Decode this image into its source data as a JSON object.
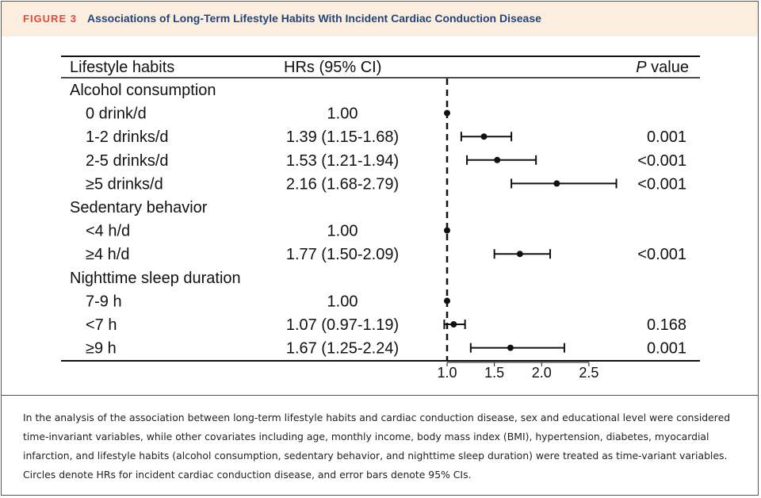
{
  "figure": {
    "label": "FIGURE 3",
    "title": "Associations of Long-Term Lifestyle Habits With Incident Cardiac Conduction Disease"
  },
  "chart_data": {
    "type": "forest",
    "columns": {
      "habits": "Lifestyle habits",
      "hr": "HRs (95% CI)",
      "p_prefix": "P",
      "p_suffix": " value"
    },
    "reference_line": 1.0,
    "x_ticks": [
      1.0,
      1.5,
      2.0,
      2.5
    ],
    "x_tick_labels": [
      "1.0",
      "1.5",
      "2.0",
      "2.5"
    ],
    "xlim": [
      0.85,
      2.95
    ],
    "rows": [
      {
        "kind": "group",
        "label": "Alcohol consumption"
      },
      {
        "kind": "item",
        "label": "0 drink/d",
        "hr_text": "1.00",
        "hr": 1.0,
        "lo": 1.0,
        "hi": 1.0,
        "p": ""
      },
      {
        "kind": "item",
        "label": "1-2 drinks/d",
        "hr_text": "1.39 (1.15-1.68)",
        "hr": 1.39,
        "lo": 1.15,
        "hi": 1.68,
        "p": "0.001"
      },
      {
        "kind": "item",
        "label": "2-5 drinks/d",
        "hr_text": "1.53 (1.21-1.94)",
        "hr": 1.53,
        "lo": 1.21,
        "hi": 1.94,
        "p": "<0.001"
      },
      {
        "kind": "item",
        "label": "≥5 drinks/d",
        "hr_text": "2.16 (1.68-2.79)",
        "hr": 2.16,
        "lo": 1.68,
        "hi": 2.79,
        "p": "<0.001"
      },
      {
        "kind": "group",
        "label": "Sedentary behavior"
      },
      {
        "kind": "item",
        "label": "<4 h/d",
        "hr_text": "1.00",
        "hr": 1.0,
        "lo": 1.0,
        "hi": 1.0,
        "p": ""
      },
      {
        "kind": "item",
        "label": "≥4 h/d",
        "hr_text": "1.77 (1.50-2.09)",
        "hr": 1.77,
        "lo": 1.5,
        "hi": 2.09,
        "p": "<0.001"
      },
      {
        "kind": "group",
        "label": "Nighttime sleep duration"
      },
      {
        "kind": "item",
        "label": "7-9 h",
        "hr_text": "1.00",
        "hr": 1.0,
        "lo": 1.0,
        "hi": 1.0,
        "p": ""
      },
      {
        "kind": "item",
        "label": "<7 h",
        "hr_text": "1.07 (0.97-1.19)",
        "hr": 1.07,
        "lo": 0.97,
        "hi": 1.19,
        "p": "0.168"
      },
      {
        "kind": "item",
        "label": "≥9 h",
        "hr_text": "1.67 (1.25-2.24)",
        "hr": 1.67,
        "lo": 1.25,
        "hi": 2.24,
        "p": "0.001"
      }
    ]
  },
  "caption": "In the analysis of the association between long-term lifestyle habits and cardiac conduction disease, sex and educational level were considered time-invariant variables, while other covariates including age, monthly income, body mass index (BMI), hypertension, diabetes, myocardial infarction, and lifestyle habits (alcohol consumption, sedentary behavior, and nighttime sleep duration) were treated as time-variant variables. Circles denote HRs for incident cardiac conduction disease, and error bars denote 95% CIs."
}
